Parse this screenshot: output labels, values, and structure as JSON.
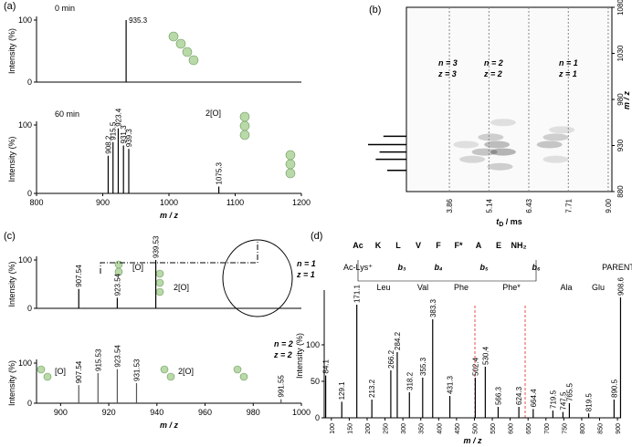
{
  "chart_data": [
    {
      "type": "spectrum",
      "panel": "(a)",
      "label": "0 min",
      "ylabel": "Intensity (%)",
      "x": [
        935.3
      ],
      "values": [
        100
      ],
      "xlim": [
        800,
        1200
      ],
      "ylim": [
        0,
        100
      ],
      "yticks": [
        0,
        100
      ],
      "color": "#000000",
      "rotated_labels": false
    },
    {
      "type": "spectrum",
      "label": "60 min",
      "ylabel": "Intensity (%)",
      "xlabel": "m / z",
      "annotations": [
        "2[O]"
      ],
      "x": [
        908.2,
        915.5,
        923.4,
        931.3,
        939.3,
        1075.3
      ],
      "values": [
        55,
        75,
        95,
        70,
        65,
        10
      ],
      "xlim": [
        800,
        1200
      ],
      "ylim": [
        0,
        100
      ],
      "xticks": [
        800,
        900,
        1000,
        1100,
        1200
      ],
      "yticks": [
        0,
        100
      ],
      "color": "#000000",
      "rotated_labels": true
    },
    {
      "type": "heatmap",
      "panel": "(b)",
      "ylabel": "m / z",
      "xlabel": {
        "t": "t",
        "sub": "D",
        "unit": " / ms"
      },
      "annotations": [
        "n = 3",
        "z = 3",
        "n = 2",
        "z = 2",
        "n = 1",
        "z = 1"
      ],
      "xlim": [
        2.47,
        9.12
      ],
      "ylim": [
        880,
        1080
      ],
      "xticks": [
        3.86,
        5.14,
        6.43,
        7.71,
        {
          "value": 9,
          "label": "9.00"
        }
      ],
      "yticks": [
        880,
        930,
        980,
        1030,
        1080
      ],
      "spots": {
        "x": [
          4.6,
          5.0,
          5.4,
          5.6,
          5.2,
          5.5,
          7.1,
          7.3,
          7.5,
          7.3,
          4.4,
          5.6
        ],
        "y": [
          915,
          923,
          931,
          923,
          939,
          907,
          931,
          939,
          947,
          915,
          931,
          955
        ],
        "values": [
          0.4,
          0.6,
          0.7,
          0.8,
          0.5,
          0.5,
          0.6,
          0.5,
          0.3,
          0.3,
          0.3,
          0.3
        ]
      },
      "projection": {
        "y": [
          903,
          915,
          923,
          931,
          940
        ],
        "values": [
          0.5,
          0.8,
          0.7,
          1.0,
          0.6
        ]
      }
    },
    {
      "type": "spectrum",
      "panel": "(c)",
      "ylabel": "Intensity (%)",
      "annotations": [
        "n = 1",
        "z = 1",
        "[O]",
        "2[O]"
      ],
      "x": [
        907.54,
        923.54,
        939.53
      ],
      "values": [
        40,
        22,
        100
      ],
      "xlim": [
        890,
        1000
      ],
      "ylim": [
        0,
        100
      ],
      "yticks": [
        0,
        100
      ],
      "color": "#000000",
      "rotated_labels": true
    },
    {
      "type": "spectrum",
      "ylabel": "Intensity (%)",
      "xlabel": "m / z",
      "annotations": [
        "n = 2",
        "z = 2",
        "[O]",
        "2[O]"
      ],
      "x": [
        907.54,
        915.53,
        923.54,
        931.53,
        991.55
      ],
      "values": [
        45,
        75,
        85,
        50,
        10
      ],
      "xlim": [
        890,
        1000
      ],
      "ylim": [
        0,
        100
      ],
      "xticks": [
        900,
        920,
        940,
        960,
        980,
        1000
      ],
      "yticks": [
        0,
        100
      ],
      "color": "#555555",
      "rotated_labels": true
    },
    {
      "type": "spectrum",
      "panel": "(d)",
      "ylabel": "Intensity (%)",
      "xlabel": "m / z",
      "sequence": [
        "Ac",
        "K",
        "L",
        "V",
        "F",
        "F*",
        "A",
        "E",
        "NH₂"
      ],
      "ions": [
        "Ac-Lys⁺",
        "b₃",
        "b₄",
        "b₅",
        "b₆",
        "PARENT"
      ],
      "residues": [
        "Leu",
        "Val",
        "Phe",
        "Phe*",
        "Ala",
        "Glu"
      ],
      "x": [
        84.1,
        129.1,
        171.1,
        213.2,
        266.2,
        284.2,
        318.2,
        355.3,
        383.3,
        431.3,
        502.4,
        530.4,
        566.3,
        624.3,
        664.4,
        719.5,
        747.5,
        765.5,
        819.5,
        890.5,
        908.6
      ],
      "values": [
        58,
        22,
        155,
        25,
        65,
        90,
        35,
        55,
        135,
        30,
        55,
        70,
        15,
        15,
        12,
        10,
        8,
        20,
        6,
        25,
        165
      ],
      "xlim": [
        80,
        910
      ],
      "ylim": [
        0,
        170
      ],
      "xticks": [
        100,
        150,
        200,
        250,
        300,
        350,
        400,
        450,
        500,
        550,
        600,
        650,
        700,
        750,
        800,
        850,
        900
      ],
      "yticks": [
        0,
        50,
        100
      ],
      "color": "#000000",
      "rotated_labels": true,
      "rotated_xticks": true
    }
  ]
}
